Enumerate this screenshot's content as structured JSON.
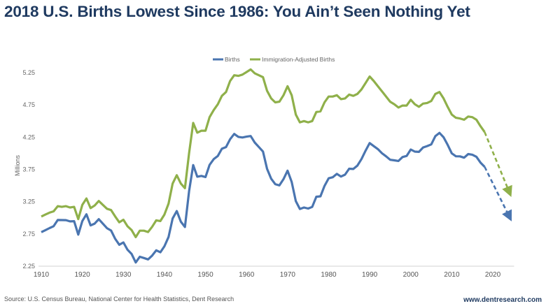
{
  "title": "2018 U.S. Births Lowest Since 1986: You Ain’t Seen Nothing Yet",
  "source": "Source: U.S. Census Bureau, National Center for Health Statistics, Dent Research",
  "website": "www.dentresearch.com",
  "chart_data": {
    "type": "line",
    "title": "",
    "xlabel": "",
    "ylabel": "Millions",
    "xlim": [
      1910,
      2025
    ],
    "ylim": [
      2.25,
      5.25
    ],
    "yticks": [
      "2.25",
      "2.75",
      "3.25",
      "3.75",
      "4.25",
      "4.75",
      "5.25"
    ],
    "xticks": [
      1910,
      1920,
      1930,
      1940,
      1950,
      1960,
      1970,
      1980,
      1990,
      2000,
      2010,
      2020
    ],
    "grid": false,
    "legend": "top-center",
    "x_start": 1910,
    "series": [
      {
        "name": "Births",
        "color": "#4a75b0",
        "values": [
          2.777,
          2.809,
          2.84,
          2.869,
          2.966,
          2.965,
          2.964,
          2.944,
          2.948,
          2.74,
          2.95,
          3.055,
          2.882,
          2.91,
          2.979,
          2.909,
          2.839,
          2.802,
          2.674,
          2.582,
          2.618,
          2.506,
          2.44,
          2.307,
          2.396,
          2.377,
          2.355,
          2.413,
          2.496,
          2.466,
          2.559,
          2.703,
          2.989,
          3.104,
          2.939,
          2.858,
          3.411,
          3.817,
          3.637,
          3.649,
          3.632,
          3.82,
          3.909,
          3.959,
          4.071,
          4.097,
          4.218,
          4.3,
          4.255,
          4.245,
          4.258,
          4.268,
          4.167,
          4.098,
          4.027,
          3.76,
          3.606,
          3.521,
          3.502,
          3.6,
          3.731,
          3.556,
          3.258,
          3.137,
          3.16,
          3.144,
          3.168,
          3.327,
          3.333,
          3.494,
          3.612,
          3.629,
          3.681,
          3.639,
          3.669,
          3.761,
          3.757,
          3.809,
          3.91,
          4.041,
          4.158,
          4.111,
          4.065,
          4.0,
          3.953,
          3.9,
          3.891,
          3.881,
          3.942,
          3.959,
          4.059,
          4.026,
          4.022,
          4.09,
          4.112,
          4.138,
          4.266,
          4.316,
          4.248,
          4.131,
          3.999,
          3.954,
          3.953,
          3.932,
          3.988,
          3.978,
          3.946,
          3.856,
          3.791
        ],
        "projection": [
          [
            2018,
            3.791
          ],
          [
            2024,
            3.02
          ]
        ]
      },
      {
        "name": "Immigration-Adjusted Births",
        "color": "#8fb04a",
        "values": [
          3.02,
          3.05,
          3.08,
          3.1,
          3.18,
          3.17,
          3.18,
          3.16,
          3.17,
          2.98,
          3.2,
          3.3,
          3.15,
          3.19,
          3.26,
          3.2,
          3.14,
          3.12,
          3.02,
          2.93,
          2.97,
          2.87,
          2.81,
          2.7,
          2.8,
          2.8,
          2.78,
          2.86,
          2.96,
          2.95,
          3.05,
          3.22,
          3.53,
          3.66,
          3.53,
          3.46,
          4.0,
          4.47,
          4.32,
          4.35,
          4.35,
          4.56,
          4.67,
          4.76,
          4.89,
          4.95,
          5.12,
          5.21,
          5.2,
          5.22,
          5.26,
          5.3,
          5.24,
          5.21,
          5.18,
          4.97,
          4.85,
          4.79,
          4.8,
          4.9,
          5.04,
          4.9,
          4.6,
          4.48,
          4.5,
          4.48,
          4.5,
          4.64,
          4.65,
          4.79,
          4.88,
          4.88,
          4.9,
          4.84,
          4.85,
          4.91,
          4.89,
          4.92,
          4.99,
          5.09,
          5.19,
          5.12,
          5.04,
          4.96,
          4.88,
          4.8,
          4.76,
          4.71,
          4.74,
          4.74,
          4.83,
          4.76,
          4.72,
          4.77,
          4.78,
          4.81,
          4.92,
          4.95,
          4.85,
          4.72,
          4.6,
          4.55,
          4.54,
          4.52,
          4.57,
          4.56,
          4.52,
          4.42,
          4.33
        ],
        "projection": [
          [
            2018,
            4.33
          ],
          [
            2024,
            3.4
          ]
        ]
      }
    ]
  }
}
